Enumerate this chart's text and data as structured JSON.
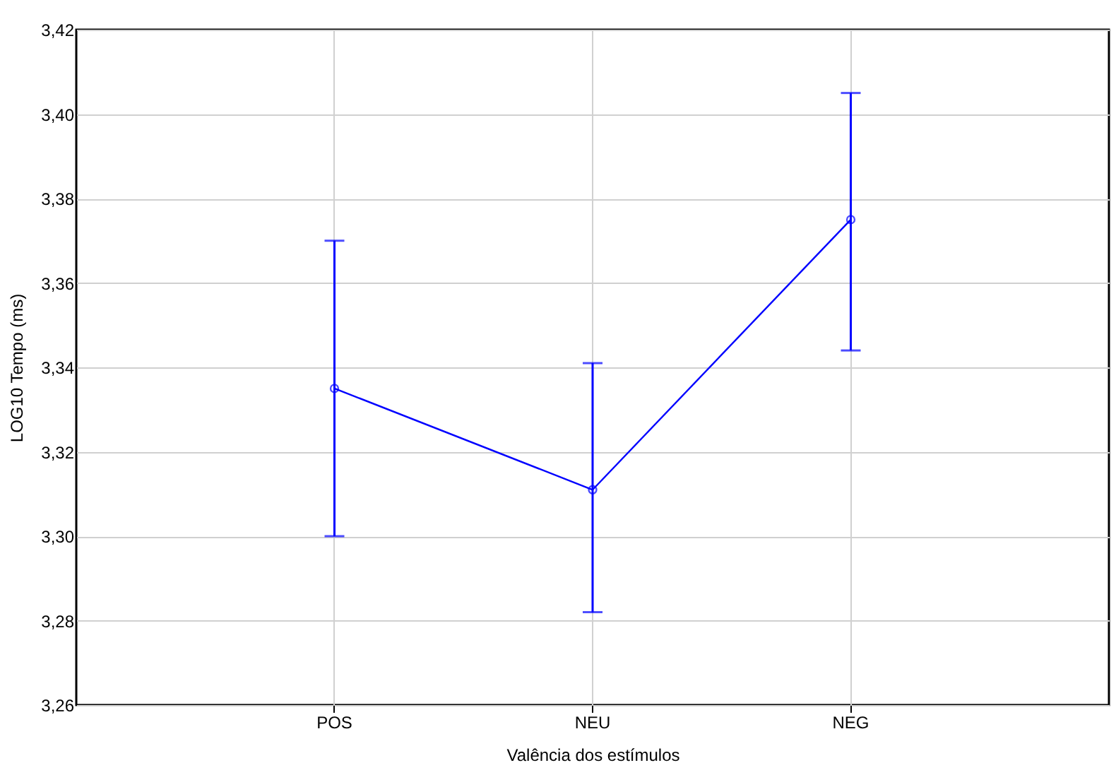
{
  "chart_data": {
    "type": "line",
    "xlabel": "Valência dos estímulos",
    "ylabel": "LOG10 Tempo (ms)",
    "categories": [
      "POS",
      "NEU",
      "NEG"
    ],
    "series": [
      {
        "color": "#0000ff",
        "values": [
          3.335,
          3.311,
          3.375
        ],
        "errors": [
          [
            3.3,
            3.37
          ],
          [
            3.282,
            3.341
          ],
          [
            3.344,
            3.405
          ]
        ]
      }
    ],
    "ylim": [
      3.26,
      3.42
    ],
    "yticks": [
      {
        "value": 3.26,
        "label": "3,26"
      },
      {
        "value": 3.28,
        "label": "3,28"
      },
      {
        "value": 3.3,
        "label": "3,30"
      },
      {
        "value": 3.32,
        "label": "3,32"
      },
      {
        "value": 3.34,
        "label": "3,34"
      },
      {
        "value": 3.36,
        "label": "3,36"
      },
      {
        "value": 3.38,
        "label": "3,38"
      },
      {
        "value": 3.4,
        "label": "3,40"
      },
      {
        "value": 3.42,
        "label": "3,42"
      }
    ],
    "grid": true,
    "marker": "circle",
    "line_style": "solid"
  }
}
